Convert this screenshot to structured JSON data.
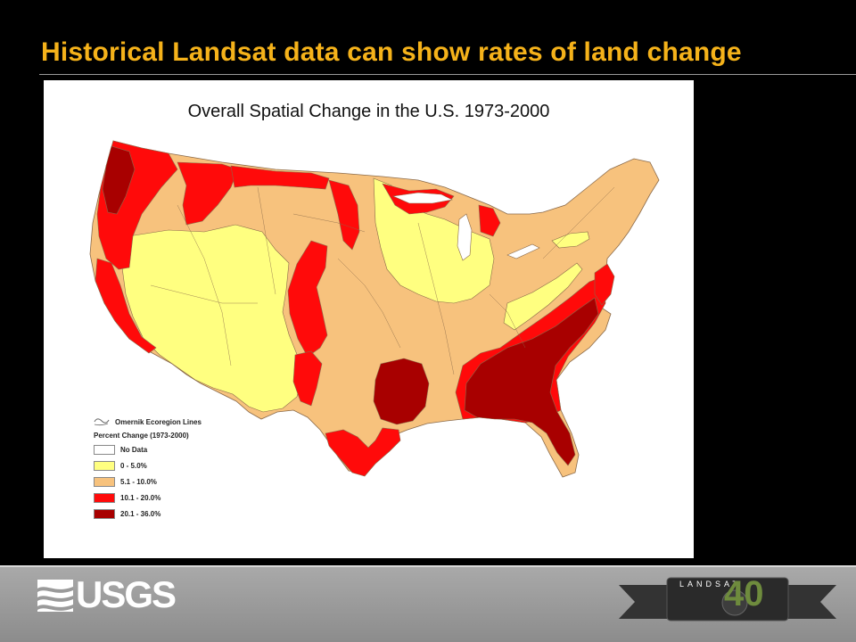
{
  "slide": {
    "title": "Historical Landsat data can show rates of land change"
  },
  "map": {
    "title": "Overall Spatial Change in the U.S. 1973-2000",
    "colors": {
      "no_data": "#ffffff",
      "c0_5": "#ffff80",
      "c5_10": "#f7c27d",
      "c10_20": "#ff0a0a",
      "c20_36": "#a80000",
      "ecoregion_line": "#8a6a4a"
    },
    "legend": {
      "ecoregion_label": "Omernik Ecoregion Lines",
      "heading": "Percent Change (1973-2000)",
      "items": [
        {
          "label": "No Data",
          "color": "#ffffff"
        },
        {
          "label": "0 - 5.0%",
          "color": "#ffff80"
        },
        {
          "label": "5.1 - 10.0%",
          "color": "#f7c27d"
        },
        {
          "label": "10.1 - 20.0%",
          "color": "#ff0a0a"
        },
        {
          "label": "20.1 - 36.0%",
          "color": "#a80000"
        }
      ]
    }
  },
  "footer": {
    "usgs_logo_text": "USGS",
    "landsat_text": "LANDSAT",
    "landsat_number": "40"
  }
}
